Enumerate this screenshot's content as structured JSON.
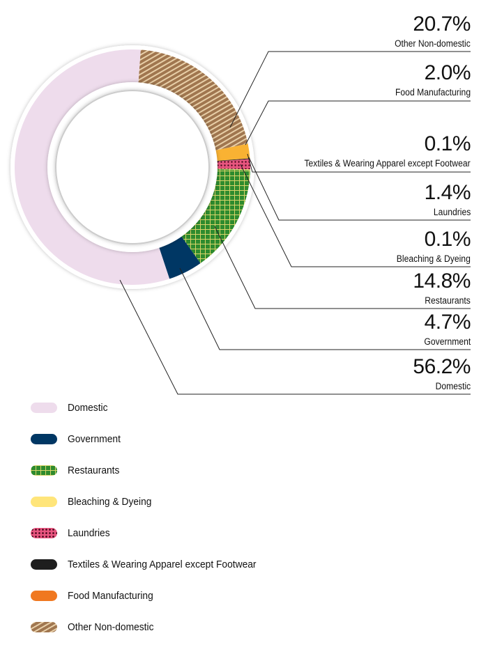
{
  "chart_data": {
    "type": "pie",
    "donut": true,
    "slices": [
      {
        "name": "Other Non-domestic",
        "value": 20.7,
        "label": "20.7%",
        "color": "#a0764f",
        "pattern": "diagonal-stripes"
      },
      {
        "name": "Food Manufacturing",
        "value": 2.0,
        "label": "2.0%",
        "color": "#f9b233",
        "legend_color": "#f07820",
        "pattern": "solid"
      },
      {
        "name": "Textiles & Wearing Apparel except Footwear",
        "value": 0.1,
        "label": "0.1%",
        "color": "#1e1e1e",
        "pattern": "solid"
      },
      {
        "name": "Laundries",
        "value": 1.4,
        "label": "1.4%",
        "color": "#e8557f",
        "pattern": "dots"
      },
      {
        "name": "Bleaching & Dyeing",
        "value": 0.1,
        "label": "0.1%",
        "color": "#ffe57a",
        "pattern": "solid"
      },
      {
        "name": "Restaurants",
        "value": 14.8,
        "label": "14.8%",
        "color": "#2e8b2e",
        "pattern": "grid"
      },
      {
        "name": "Government",
        "value": 4.7,
        "label": "4.7%",
        "color": "#003764",
        "pattern": "solid"
      },
      {
        "name": "Domestic",
        "value": 56.2,
        "label": "56.2%",
        "color": "#eedcec",
        "pattern": "solid"
      }
    ],
    "legend": [
      "Domestic",
      "Government",
      "Restaurants",
      "Bleaching & Dyeing",
      "Laundries",
      "Textiles & Wearing Apparel except Footwear",
      "Food Manufacturing",
      "Other Non-domestic"
    ],
    "legend_placement": "bottom-left"
  }
}
